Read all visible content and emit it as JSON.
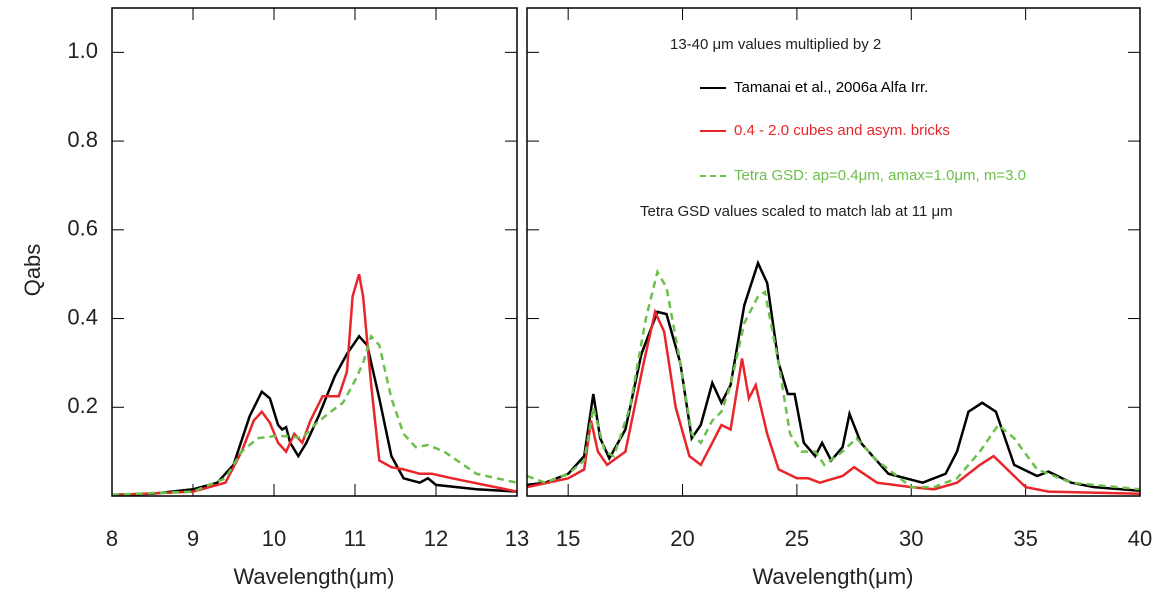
{
  "chart_data": [
    {
      "type": "line",
      "xlabel": "Wavelength(μm)",
      "ylabel": "Qabs",
      "xlim": [
        8,
        13
      ],
      "xticks": [
        8,
        9,
        10,
        11,
        12,
        13
      ],
      "ylim": [
        0,
        1.1
      ],
      "yticks": [
        0.2,
        0.4,
        0.6,
        0.8,
        {
          "value": 1,
          "label": "1.0"
        }
      ],
      "series": [
        {
          "color": "#000000",
          "style": "solid",
          "x": [
            8.0,
            8.5,
            9.0,
            9.3,
            9.5,
            9.7,
            9.85,
            9.95,
            10.05,
            10.1,
            10.15,
            10.2,
            10.3,
            10.4,
            10.55,
            10.75,
            10.9,
            11.05,
            11.15,
            11.3,
            11.45,
            11.6,
            11.8,
            11.9,
            12.0,
            12.5,
            13.0
          ],
          "values": [
            0.003,
            0.005,
            0.015,
            0.03,
            0.07,
            0.18,
            0.235,
            0.22,
            0.16,
            0.15,
            0.155,
            0.12,
            0.09,
            0.12,
            0.18,
            0.27,
            0.32,
            0.36,
            0.34,
            0.22,
            0.09,
            0.04,
            0.03,
            0.04,
            0.025,
            0.015,
            0.01
          ]
        },
        {
          "color": "#e8262a",
          "style": "solid",
          "x": [
            8.0,
            9.0,
            9.4,
            9.6,
            9.75,
            9.85,
            9.95,
            10.05,
            10.15,
            10.25,
            10.35,
            10.45,
            10.6,
            10.8,
            10.9,
            10.97,
            11.05,
            11.1,
            11.2,
            11.3,
            11.45,
            11.6,
            11.8,
            11.95,
            12.2,
            13.0
          ],
          "values": [
            0.002,
            0.01,
            0.03,
            0.1,
            0.17,
            0.19,
            0.165,
            0.12,
            0.1,
            0.14,
            0.12,
            0.17,
            0.225,
            0.225,
            0.28,
            0.45,
            0.5,
            0.45,
            0.25,
            0.08,
            0.065,
            0.06,
            0.05,
            0.05,
            0.04,
            0.01
          ]
        },
        {
          "color": "#6cbf4a",
          "style": "dashed",
          "x": [
            8.0,
            9.0,
            9.4,
            9.6,
            9.8,
            10.0,
            10.2,
            10.35,
            10.5,
            10.7,
            10.85,
            11.0,
            11.1,
            11.2,
            11.3,
            11.45,
            11.6,
            11.75,
            11.9,
            12.1,
            12.5,
            13.0
          ],
          "values": [
            0.003,
            0.01,
            0.04,
            0.1,
            0.13,
            0.135,
            0.135,
            0.13,
            0.16,
            0.19,
            0.21,
            0.26,
            0.3,
            0.36,
            0.34,
            0.22,
            0.14,
            0.11,
            0.115,
            0.1,
            0.05,
            0.03
          ]
        }
      ]
    },
    {
      "type": "line",
      "xlabel": "Wavelength(μm)",
      "xlim": [
        13.2,
        40
      ],
      "xticks": [
        15,
        20,
        25,
        30,
        35,
        40
      ],
      "ylim": [
        0,
        1.1
      ],
      "legend_title": "13-40 μm values multiplied by 2",
      "note": "Tetra GSD values scaled to match lab at 11 μm",
      "series": [
        {
          "name": "Tamanai et al., 2006a Alfa Irr.",
          "color": "#000000",
          "style": "solid",
          "x": [
            13.2,
            14.0,
            15.0,
            15.7,
            16.1,
            16.4,
            16.8,
            17.5,
            18.2,
            18.9,
            19.3,
            19.9,
            20.4,
            20.8,
            21.3,
            21.7,
            22.1,
            22.7,
            23.3,
            23.7,
            24.2,
            24.6,
            24.9,
            25.3,
            25.8,
            26.1,
            26.5,
            27.0,
            27.3,
            27.8,
            29.0,
            30.5,
            31.5,
            32.0,
            32.5,
            33.1,
            33.7,
            34.5,
            35.5,
            36.0,
            37.0,
            38.0,
            40.0
          ],
          "values": [
            0.025,
            0.03,
            0.05,
            0.09,
            0.23,
            0.13,
            0.085,
            0.15,
            0.32,
            0.415,
            0.41,
            0.3,
            0.13,
            0.16,
            0.255,
            0.21,
            0.25,
            0.43,
            0.525,
            0.48,
            0.3,
            0.23,
            0.23,
            0.12,
            0.09,
            0.12,
            0.08,
            0.11,
            0.185,
            0.12,
            0.05,
            0.03,
            0.05,
            0.1,
            0.19,
            0.21,
            0.19,
            0.07,
            0.045,
            0.055,
            0.03,
            0.02,
            0.012
          ]
        },
        {
          "name": "0.4 - 2.0 cubes and asym. bricks",
          "color": "#e8262a",
          "style": "solid",
          "x": [
            13.2,
            15.0,
            15.7,
            16.0,
            16.3,
            16.7,
            17.5,
            18.3,
            18.8,
            19.2,
            19.7,
            20.3,
            20.8,
            21.3,
            21.7,
            22.1,
            22.6,
            22.9,
            23.2,
            23.7,
            24.2,
            25.0,
            25.5,
            26.0,
            27.0,
            27.5,
            28.5,
            30.0,
            31.0,
            32.0,
            33.0,
            33.6,
            34.2,
            35.0,
            36.0,
            40.0
          ],
          "values": [
            0.02,
            0.04,
            0.06,
            0.17,
            0.1,
            0.07,
            0.1,
            0.3,
            0.415,
            0.37,
            0.2,
            0.09,
            0.07,
            0.12,
            0.16,
            0.15,
            0.31,
            0.22,
            0.25,
            0.14,
            0.06,
            0.04,
            0.04,
            0.03,
            0.045,
            0.065,
            0.03,
            0.02,
            0.015,
            0.03,
            0.07,
            0.09,
            0.06,
            0.02,
            0.01,
            0.005
          ]
        },
        {
          "name": "Tetra GSD: ap=0.4μm, amax=1.0μm, m=3.0",
          "color": "#6cbf4a",
          "style": "dashed",
          "x": [
            13.2,
            14.0,
            15.0,
            15.7,
            16.1,
            16.6,
            17.0,
            17.7,
            18.4,
            18.9,
            19.3,
            19.9,
            20.4,
            20.8,
            21.3,
            21.7,
            22.1,
            22.7,
            23.3,
            23.6,
            24.2,
            24.7,
            25.2,
            25.8,
            26.2,
            27.0,
            27.6,
            28.5,
            30.0,
            31.0,
            32.0,
            33.0,
            33.8,
            34.5,
            35.5,
            37.0,
            40.0
          ],
          "values": [
            0.045,
            0.03,
            0.05,
            0.08,
            0.2,
            0.1,
            0.09,
            0.2,
            0.4,
            0.505,
            0.47,
            0.3,
            0.14,
            0.12,
            0.17,
            0.19,
            0.25,
            0.39,
            0.45,
            0.46,
            0.3,
            0.14,
            0.1,
            0.1,
            0.07,
            0.1,
            0.13,
            0.08,
            0.02,
            0.02,
            0.04,
            0.1,
            0.16,
            0.13,
            0.06,
            0.03,
            0.015
          ]
        }
      ]
    }
  ]
}
